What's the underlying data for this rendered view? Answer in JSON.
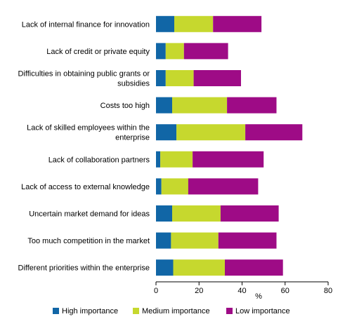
{
  "chart_data": {
    "type": "bar",
    "orientation": "horizontal",
    "stacked": true,
    "categories": [
      "Lack of internal finance for innovation",
      "Lack of credit or private equity",
      "Difficulties in obtaining public grants or subsidies",
      "Costs too high",
      "Lack of skilled employees within the enterprise",
      "Lack of collaboration partners",
      "Lack of access to external knowledge",
      "Uncertain market demand for ideas",
      "Too much competition in the market",
      "Different priorities within the enterprise"
    ],
    "category_lines": [
      [
        "Lack of internal finance for innovation"
      ],
      [
        "Lack of credit or private equity"
      ],
      [
        "Difficulties in obtaining public grants or",
        "subsidies"
      ],
      [
        "Costs too high"
      ],
      [
        "Lack of skilled employees within the",
        "enterprise"
      ],
      [
        "Lack of collaboration partners"
      ],
      [
        "Lack of access to external knowledge"
      ],
      [
        "Uncertain market demand for ideas"
      ],
      [
        "Too much competition in the market"
      ],
      [
        "Different priorities within the enterprise"
      ]
    ],
    "series": [
      {
        "name": "High importance",
        "color": "#1166a6",
        "values": [
          8.5,
          4.5,
          4.5,
          7.5,
          9.5,
          2.0,
          2.5,
          7.5,
          7.0,
          8.0
        ]
      },
      {
        "name": "Medium importance",
        "color": "#c6d82e",
        "values": [
          18.0,
          8.5,
          13.0,
          25.5,
          32.0,
          15.0,
          12.5,
          22.5,
          22.0,
          24.0
        ]
      },
      {
        "name": "Low importance",
        "color": "#9e0b86",
        "values": [
          22.5,
          20.5,
          22.0,
          23.0,
          26.5,
          33.0,
          32.5,
          27.0,
          27.0,
          27.0
        ]
      }
    ],
    "xticks": [
      0,
      20,
      40,
      60,
      80
    ],
    "xlim": [
      0,
      80
    ],
    "xlabel": "%",
    "legend_position": "bottom",
    "grid": false
  }
}
